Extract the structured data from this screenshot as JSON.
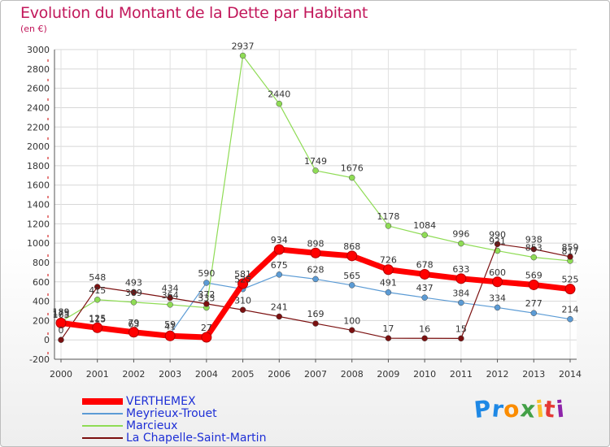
{
  "header": {
    "title": "Evolution du Montant de la Dette par Habitant",
    "unit": "(en €)"
  },
  "brand": {
    "letters": [
      "P",
      "r",
      "o",
      "x",
      "i",
      "t",
      "i"
    ],
    "colors": [
      "#1e88e5",
      "#1e88e5",
      "#fb8c00",
      "#43a047",
      "#fbc02d",
      "#e53935",
      "#8e24aa"
    ]
  },
  "chart_data": {
    "type": "line",
    "title": "Evolution du Montant de la Dette par Habitant",
    "ylabel": "(en €)",
    "xlabel": "",
    "ylim": [
      -200,
      3000
    ],
    "yticks": [
      -200,
      0,
      200,
      400,
      600,
      800,
      1000,
      1200,
      1400,
      1600,
      1800,
      2000,
      2200,
      2400,
      2600,
      2800,
      3000
    ],
    "x": [
      "2000",
      "2001",
      "2002",
      "2003",
      "2004",
      "2005",
      "2006",
      "2007",
      "2008",
      "2009",
      "2010",
      "2011",
      "2012",
      "2013",
      "2014"
    ],
    "grid": true,
    "legend": "bottom-left",
    "series": [
      {
        "name": "VERTHEMEX",
        "color": "#ff0000",
        "values": [
          175,
          125,
          79,
          41,
          27,
          581,
          934,
          898,
          868,
          726,
          678,
          633,
          600,
          569,
          525
        ]
      },
      {
        "name": "Meyrieux-Trouet",
        "color": "#5b9bd5",
        "values": [
          163,
          115,
          63,
          59,
          590,
          525,
          675,
          628,
          565,
          491,
          437,
          384,
          334,
          277,
          214
        ]
      },
      {
        "name": "Marcieux",
        "color": "#8fdc55",
        "values": [
          189,
          415,
          389,
          364,
          333,
          2937,
          2440,
          1749,
          1676,
          1178,
          1084,
          996,
          921,
          853,
          817
        ]
      },
      {
        "name": "La Chapelle-Saint-Martin",
        "color": "#7b1010",
        "values": [
          0,
          548,
          493,
          434,
          372,
          310,
          241,
          169,
          100,
          17,
          16,
          15,
          990,
          938,
          859
        ]
      }
    ]
  }
}
